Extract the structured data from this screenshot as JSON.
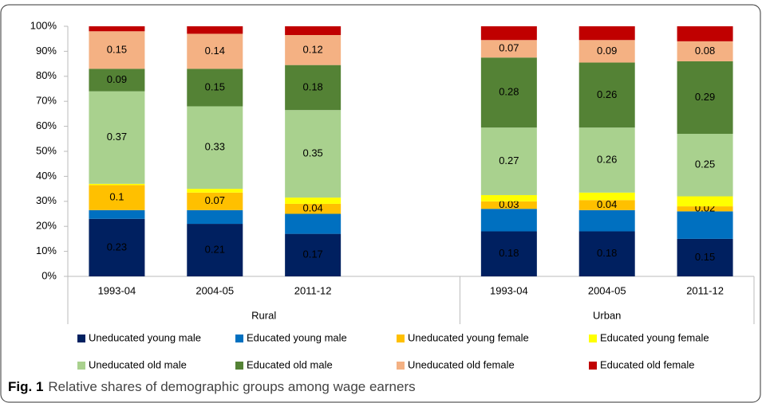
{
  "chart_data": {
    "type": "stacked-bar",
    "caption_label": "Fig. 1",
    "caption": "Relative shares of demographic groups among wage earners",
    "categories": [
      "1993-04",
      "2004-05",
      "2011-12",
      null,
      "1993-04",
      "2004-05",
      "2011-12"
    ],
    "groups": [
      "Rural",
      "Urban"
    ],
    "ylim": [
      0,
      1
    ],
    "yticks": [
      {
        "value": 0,
        "label": "0%"
      },
      {
        "value": 0.1,
        "label": "10%"
      },
      {
        "value": 0.2,
        "label": "20%"
      },
      {
        "value": 0.3,
        "label": "30%"
      },
      {
        "value": 0.4,
        "label": "40%"
      },
      {
        "value": 0.5,
        "label": "50%"
      },
      {
        "value": 0.6,
        "label": "60%"
      },
      {
        "value": 0.7,
        "label": "70%"
      },
      {
        "value": 0.8,
        "label": "80%"
      },
      {
        "value": 0.9,
        "label": "90%"
      },
      {
        "value": 1,
        "label": "100%"
      }
    ],
    "legend": "bottom",
    "series": [
      {
        "name": "Uneducated young male",
        "color": "#002060",
        "label_color": "#ffffff",
        "labels": true,
        "values": [
          0.23,
          0.21,
          0.17,
          null,
          0.18,
          0.18,
          0.15
        ]
      },
      {
        "name": "Educated young male",
        "color": "#0070c0",
        "labels": false,
        "values": [
          0.035,
          0.055,
          0.08,
          null,
          0.09,
          0.085,
          0.11
        ]
      },
      {
        "name": "Uneducated young female",
        "color": "#ffc000",
        "label_color": "#000000",
        "labels": true,
        "values": [
          0.1,
          0.07,
          0.04,
          null,
          0.03,
          0.04,
          0.02
        ]
      },
      {
        "name": "Educated young female",
        "color": "#ffff00",
        "labels": false,
        "values": [
          0.005,
          0.015,
          0.025,
          null,
          0.025,
          0.03,
          0.04
        ]
      },
      {
        "name": "Uneducated old male",
        "color": "#a9d18e",
        "label_color": "#000000",
        "labels": true,
        "values": [
          0.37,
          0.33,
          0.35,
          null,
          0.27,
          0.26,
          0.25
        ]
      },
      {
        "name": "Educated old male",
        "color": "#548235",
        "label_color": "#ffffff",
        "labels": true,
        "values": [
          0.09,
          0.15,
          0.18,
          null,
          0.28,
          0.26,
          0.29
        ]
      },
      {
        "name": "Uneducated old female",
        "color": "#f4b183",
        "label_color": "#000000",
        "labels": true,
        "values": [
          0.15,
          0.14,
          0.12,
          null,
          0.07,
          0.09,
          0.08
        ]
      },
      {
        "name": "Educated old female",
        "color": "#c00000",
        "labels": false,
        "values": [
          0.02,
          0.03,
          0.035,
          null,
          0.055,
          0.055,
          0.06
        ]
      }
    ]
  }
}
